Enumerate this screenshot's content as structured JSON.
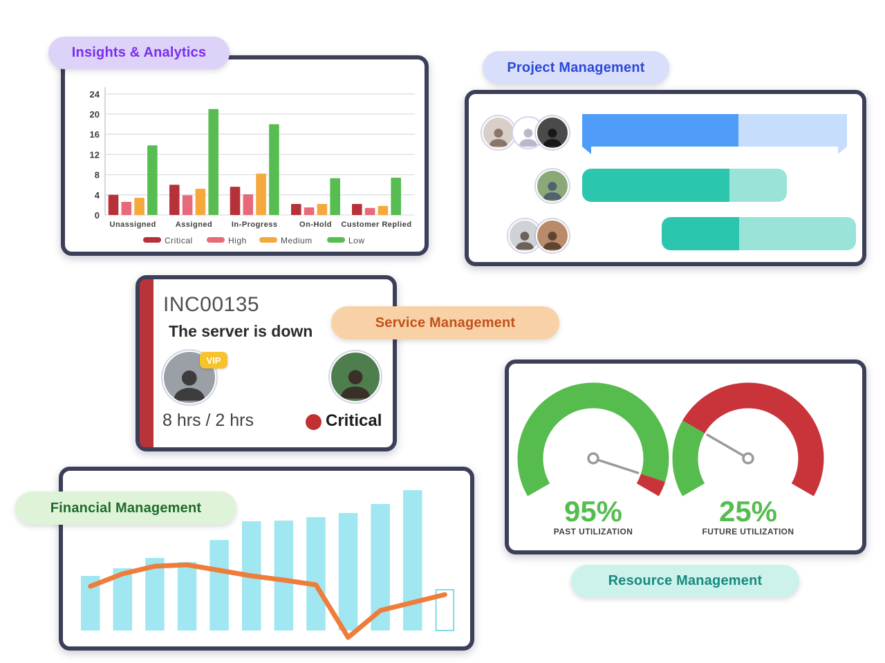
{
  "cards": {
    "analytics": {
      "label": "Insights & Analytics",
      "label_color": "#7a2df0",
      "label_bg": "#ddd2f8",
      "chart_data": {
        "type": "bar",
        "categories": [
          "Unassigned",
          "Assigned",
          "In-Progress",
          "On-Hold",
          "Customer Replied"
        ],
        "series": [
          {
            "name": "Critical",
            "color": "#b73238",
            "values": [
              4.0,
              6.0,
              5.6,
              2.2,
              2.2
            ]
          },
          {
            "name": "High",
            "color": "#e8697a",
            "values": [
              2.6,
              3.9,
              4.1,
              1.5,
              1.4
            ]
          },
          {
            "name": "Medium",
            "color": "#f5a83c",
            "values": [
              3.4,
              5.2,
              8.2,
              2.2,
              1.8
            ]
          },
          {
            "name": "Low",
            "color": "#57bd51",
            "values": [
              13.8,
              21.0,
              18.0,
              7.3,
              7.4
            ]
          }
        ],
        "ylim": [
          0,
          26
        ],
        "yticks": [
          0,
          4,
          8,
          12,
          16,
          20,
          24
        ],
        "grid": true,
        "legend_position": "bottom"
      }
    },
    "project": {
      "label": "Project Management",
      "label_color": "#2c49d8",
      "label_bg": "#d9defb",
      "rows": [
        {
          "avatars": [
            "woman-portrait",
            "generic-user",
            "man-beanie"
          ],
          "progress_pct": 59,
          "fill_color": "#4f9df9",
          "track_color": "#c6ddfc",
          "shape": "banner"
        },
        {
          "avatars": [
            "older-man-glasses"
          ],
          "progress_pct": 72,
          "fill_color": "#2cc5ae",
          "track_color": "#99e3d8",
          "shape": "rounded"
        },
        {
          "avatars": [
            "man-glasses",
            "woman-long-hair"
          ],
          "progress_pct": 40,
          "fill_color": "#2cc5ae",
          "track_color": "#99e3d8",
          "shape": "rounded"
        }
      ]
    },
    "service": {
      "label": "Service Management",
      "label_color": "#c2511b",
      "label_bg": "#f8d2a6",
      "ticket_id": "INC00135",
      "ticket_title": "The server is down",
      "requester_badge": "VIP",
      "badge_bg": "#f6c32c",
      "sla_text": "8 hrs / 2 hrs",
      "priority_label": "Critical",
      "priority_color": "#c23130",
      "stripe_color": "#b9333a",
      "avatars": [
        "bearded-man",
        "smiling-woman"
      ]
    },
    "financial": {
      "label": "Financial Management",
      "label_color": "#1e6b2b",
      "label_bg": "#def3d8",
      "chart_data": {
        "type": "combo-bar-line",
        "bar_color": "#a0e7f1",
        "hollow_bar_border": "#7fdbe8",
        "line_color": "#ee7d3b",
        "bar_values": [
          79,
          90,
          105,
          99,
          131,
          158,
          159,
          164,
          170,
          183,
          203
        ],
        "hollow_bar_value": 59,
        "line_points": [
          {
            "x": 0,
            "y": 64
          },
          {
            "x": 1,
            "y": 82
          },
          {
            "x": 2,
            "y": 93
          },
          {
            "x": 3,
            "y": 95
          },
          {
            "x": 4,
            "y": 87
          },
          {
            "x": 5,
            "y": 79
          },
          {
            "x": 6,
            "y": 73
          },
          {
            "x": 7,
            "y": 66
          },
          {
            "x": 8,
            "y": -10
          },
          {
            "x": 9,
            "y": 29
          },
          {
            "x": 11,
            "y": 52
          }
        ],
        "axes_visible": false,
        "note": "values are relative units estimated from pixels; no axis labels shown"
      }
    },
    "resource": {
      "label": "Resource Management",
      "label_color": "#17897f",
      "label_bg": "#cdf2ec",
      "chart_data": [
        {
          "type": "gauge",
          "value_pct": 95,
          "value_label": "95%",
          "caption": "PAST UTILIZATION",
          "low_color": "#56bc4e",
          "high_color": "#c8343a",
          "text_color": "#55bd4f"
        },
        {
          "type": "gauge",
          "value_pct": 25,
          "value_label": "25%",
          "caption": "FUTURE UTILIZATION",
          "low_color": "#56bc4e",
          "high_color": "#c8343a",
          "text_color": "#55bd4f"
        }
      ]
    }
  }
}
